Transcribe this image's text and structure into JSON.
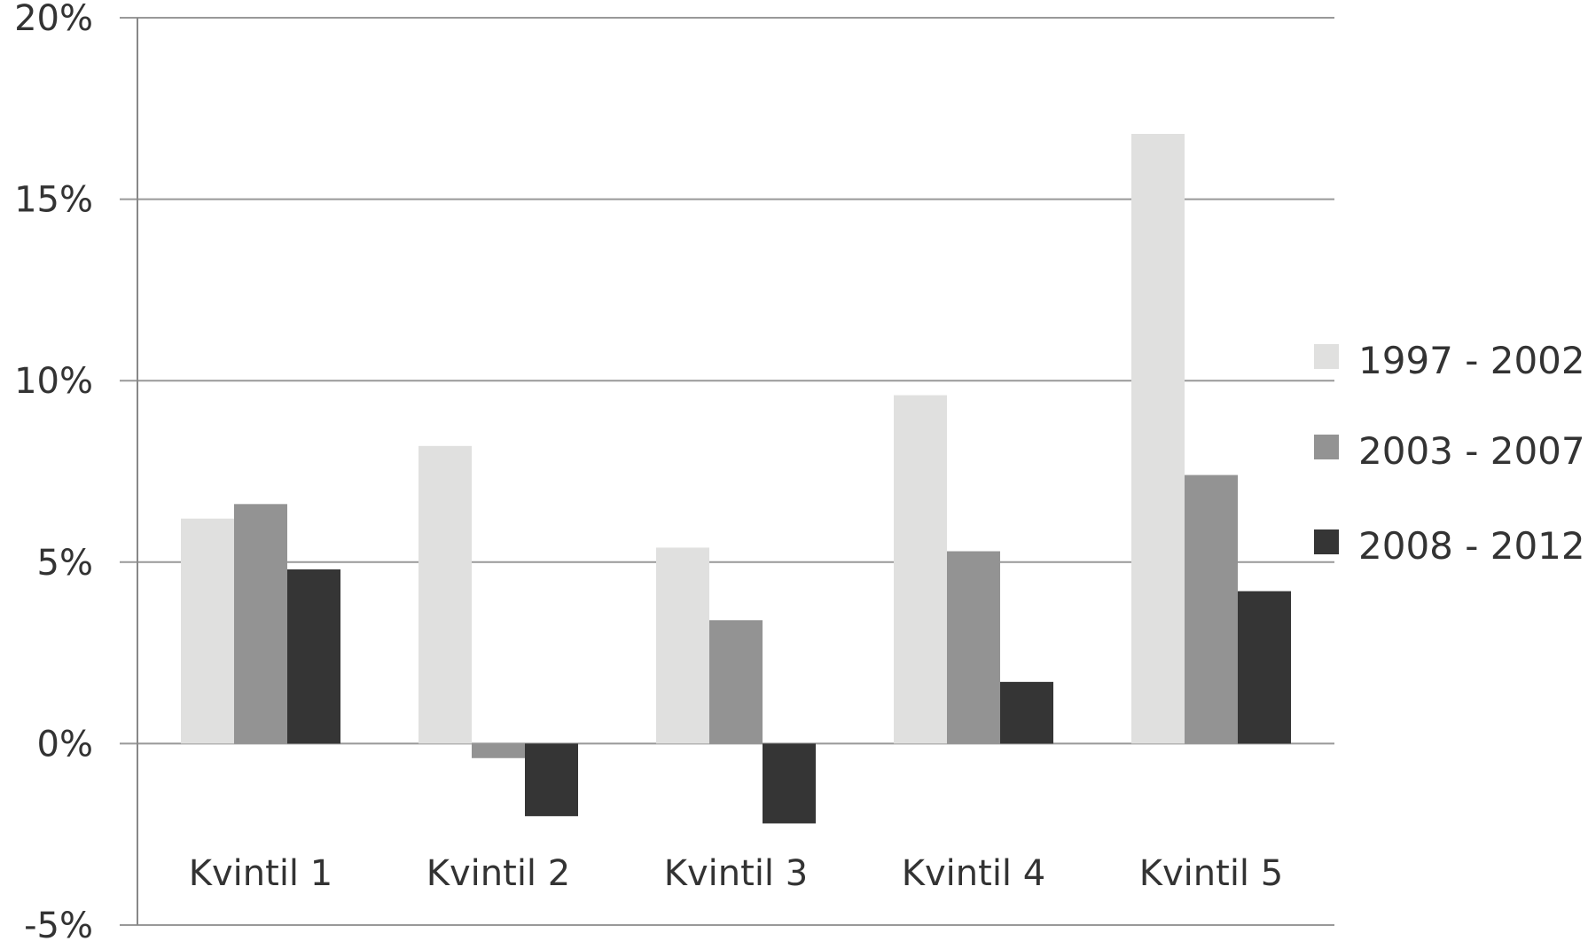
{
  "chart_data": {
    "type": "bar",
    "categories": [
      "Kvintil 1",
      "Kvintil 2",
      "Kvintil 3",
      "Kvintil 4",
      "Kvintil 5"
    ],
    "series": [
      {
        "name": "1997 - 2002",
        "color": "#e0e0df",
        "values": [
          6.2,
          8.2,
          5.4,
          9.6,
          16.8
        ]
      },
      {
        "name": "2003 - 2007",
        "color": "#939393",
        "values": [
          6.6,
          -0.4,
          3.4,
          5.3,
          7.4
        ]
      },
      {
        "name": "2008 - 2012",
        "color": "#353535",
        "values": [
          4.8,
          -2.0,
          -2.2,
          1.7,
          4.2
        ]
      }
    ],
    "y_ticks": [
      {
        "value": -5,
        "label": "-5%"
      },
      {
        "value": 0,
        "label": "0%"
      },
      {
        "value": 5,
        "label": "5%"
      },
      {
        "value": 10,
        "label": "10%"
      },
      {
        "value": 15,
        "label": "15%"
      },
      {
        "value": 20,
        "label": "20%"
      }
    ],
    "ylim": [
      -5,
      20
    ],
    "title": "",
    "xlabel": "",
    "ylabel": "",
    "grid": true,
    "legend_position": "right",
    "gridline_color": "#999999",
    "axis_color": "#888888"
  }
}
